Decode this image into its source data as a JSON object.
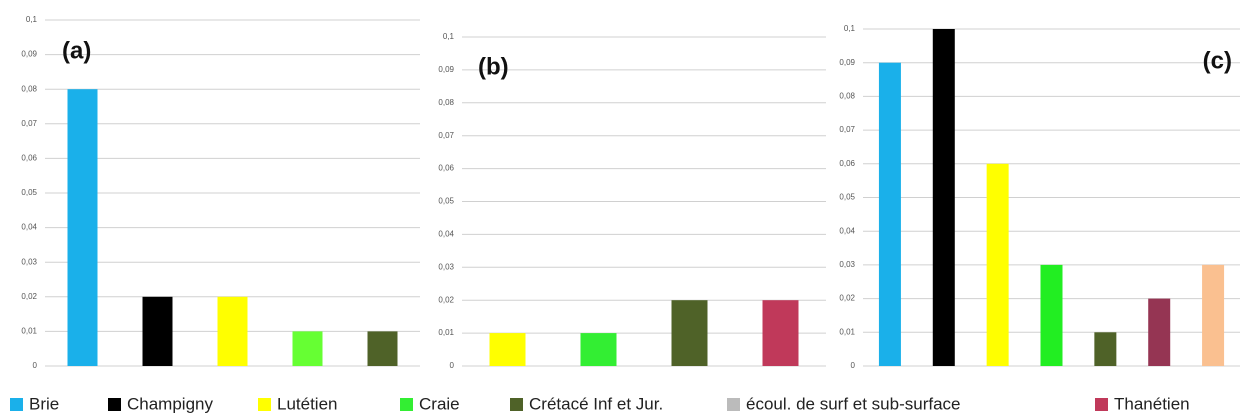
{
  "chart_data": [
    {
      "type": "bar",
      "label": "(a)",
      "values": [
        0.08,
        0.02,
        0.02,
        0.01,
        0.01
      ],
      "colors": [
        "#1ab0ea",
        "#000000",
        "#ffff00",
        "#66ff33",
        "#4f6228"
      ],
      "ylim": [
        0,
        0.1
      ],
      "yticks": [
        0,
        {
          "value": 0.01,
          "label": "0,01"
        },
        {
          "value": 0.02,
          "label": "0,02"
        },
        {
          "value": 0.03,
          "label": "0,03"
        },
        {
          "value": 0.04,
          "label": "0,04"
        },
        {
          "value": 0.05,
          "label": "0,05"
        },
        {
          "value": 0.06,
          "label": "0,06"
        },
        {
          "value": 0.07,
          "label": "0,07"
        },
        {
          "value": 0.08,
          "label": "0,08"
        },
        {
          "value": 0.09,
          "label": "0,09"
        },
        {
          "value": 0.1,
          "label": "0,1"
        }
      ],
      "grid": true
    },
    {
      "type": "bar",
      "label": "(b)",
      "values": [
        0.01,
        0.01,
        0.02,
        0.02
      ],
      "colors": [
        "#ffff00",
        "#33ee33",
        "#4f6228",
        "#c0395a"
      ],
      "ylim": [
        0,
        0.1
      ],
      "yticks": [
        0,
        {
          "value": 0.01,
          "label": "0,01"
        },
        {
          "value": 0.02,
          "label": "0,02"
        },
        {
          "value": 0.03,
          "label": "0,03"
        },
        {
          "value": 0.04,
          "label": "0,04"
        },
        {
          "value": 0.05,
          "label": "0,05"
        },
        {
          "value": 0.06,
          "label": "0,06"
        },
        {
          "value": 0.07,
          "label": "0,07"
        },
        {
          "value": 0.08,
          "label": "0,08"
        },
        {
          "value": 0.09,
          "label": "0,09"
        },
        {
          "value": 0.1,
          "label": "0,1"
        }
      ],
      "grid": true
    },
    {
      "type": "bar",
      "label": "(c)",
      "values": [
        0.09,
        0.1,
        0.06,
        0.03,
        0.01,
        0.02,
        0.03
      ],
      "colors": [
        "#1ab0ea",
        "#000000",
        "#ffff00",
        "#22ee22",
        "#4f6228",
        "#953553",
        "#fac090"
      ],
      "ylim": [
        0,
        0.1
      ],
      "yticks": [
        0,
        {
          "value": 0.01,
          "label": "0,01"
        },
        {
          "value": 0.02,
          "label": "0,02"
        },
        {
          "value": 0.03,
          "label": "0,03"
        },
        {
          "value": 0.04,
          "label": "0,04"
        },
        {
          "value": 0.05,
          "label": "0,05"
        },
        {
          "value": 0.06,
          "label": "0,06"
        },
        {
          "value": 0.07,
          "label": "0,07"
        },
        {
          "value": 0.08,
          "label": "0,08"
        },
        {
          "value": 0.09,
          "label": "0,09"
        },
        {
          "value": 0.1,
          "label": "0,1"
        }
      ],
      "grid": true
    }
  ],
  "legend": [
    {
      "name": "Brie",
      "color": "#1ab0ea"
    },
    {
      "name": "Champigny",
      "color": "#000000"
    },
    {
      "name": "Lutétien",
      "color": "#ffff00"
    },
    {
      "name": "Craie",
      "color": "#33ee33"
    },
    {
      "name": "Crétacé Inf et Jur.",
      "color": "#4f6228"
    },
    {
      "name": "écoul. de surf et sub-surface",
      "color": "#bbbbbb"
    },
    {
      "name": "Thanétien",
      "color": "#c0395a"
    }
  ]
}
